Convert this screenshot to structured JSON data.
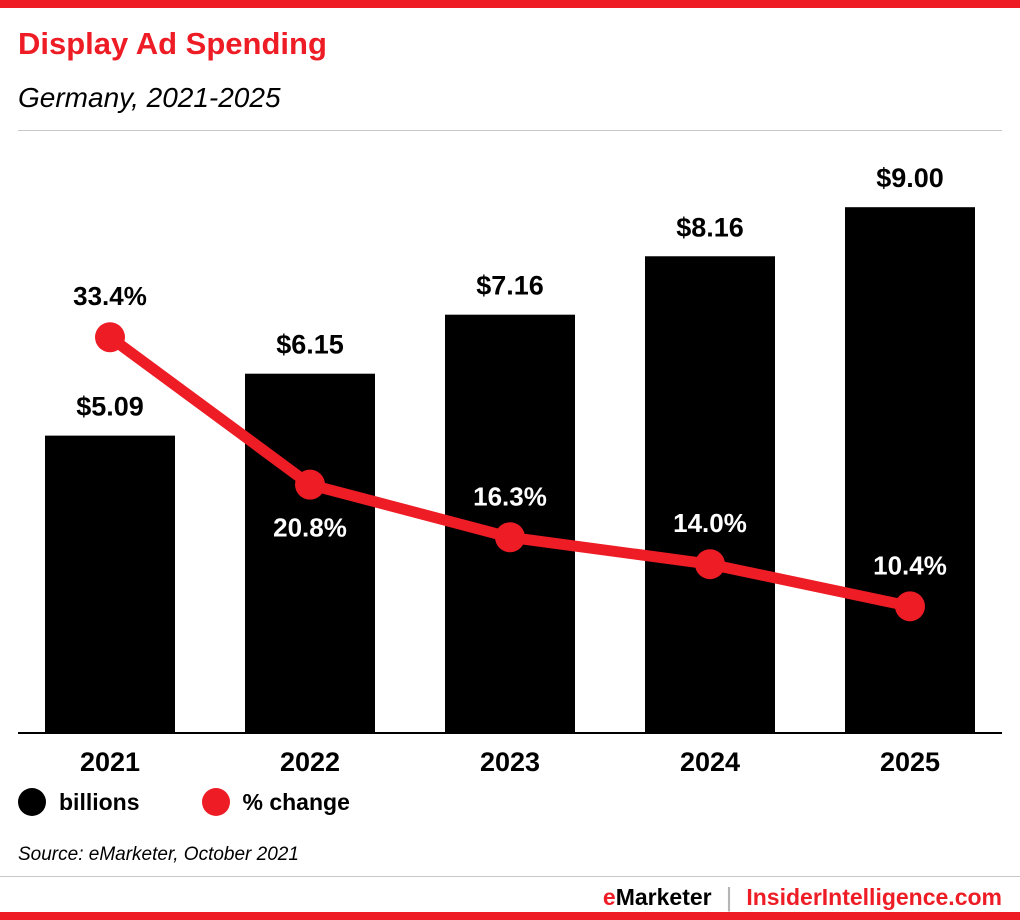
{
  "header": {
    "title": "Display Ad Spending",
    "subtitle": "Germany, 2021-2025"
  },
  "legend": {
    "items": [
      {
        "label": "billions",
        "color": "#000000"
      },
      {
        "label": "% change",
        "color": "#ee1c25"
      }
    ]
  },
  "source": {
    "text": "Source: eMarketer, October 2021"
  },
  "footer": {
    "brand_first_letter": "e",
    "brand_rest": "Marketer",
    "separator": "|",
    "site": "InsiderIntelligence.com"
  },
  "colors": {
    "accent": "#ee1c25",
    "bar": "#000000",
    "text": "#000000",
    "divider": "#c8c8c8",
    "pct_label_on_bar": "#ffffff"
  },
  "chart_data": {
    "type": "bar",
    "categories": [
      "2021",
      "2022",
      "2023",
      "2024",
      "2025"
    ],
    "series": [
      {
        "name": "billions",
        "type": "bar",
        "values": [
          5.09,
          6.15,
          7.16,
          8.16,
          9.0
        ],
        "labels": [
          "$5.09",
          "$6.15",
          "$7.16",
          "$8.16",
          "$9.00"
        ],
        "color": "#000000"
      },
      {
        "name": "% change",
        "type": "line",
        "values": [
          33.4,
          20.8,
          16.3,
          14.0,
          10.4
        ],
        "labels": [
          "33.4%",
          "20.8%",
          "16.3%",
          "14.0%",
          "10.4%"
        ],
        "color": "#ee1c25",
        "label_colors": [
          "#000000",
          "#ffffff",
          "#ffffff",
          "#ffffff",
          "#ffffff"
        ],
        "label_positions": [
          "above",
          "below",
          "above",
          "above",
          "above"
        ]
      }
    ],
    "title": "Display Ad Spending",
    "subtitle": "Germany, 2021-2025",
    "xlabel": "",
    "ylabel": "",
    "ylim_bar": [
      0,
      10.15
    ],
    "grid": false,
    "legend_position": "bottom-left"
  }
}
